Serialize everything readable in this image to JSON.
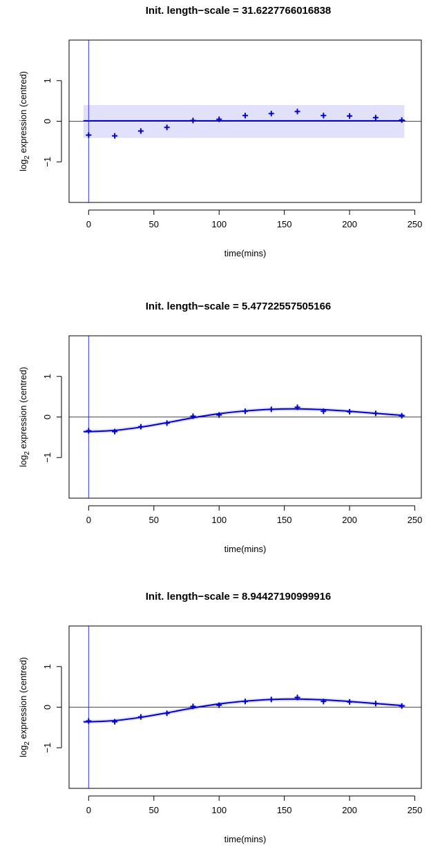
{
  "chart_data": [
    {
      "type": "line",
      "title": "Init. length−scale = 31.6227766016838",
      "xlabel": "time(mins)",
      "ylabel_base": "log",
      "ylabel_sub": "2",
      "ylabel_rest": " expression (centred)",
      "xlim": [
        -15,
        255
      ],
      "ylim": [
        -2,
        2
      ],
      "xticks": [
        0,
        50,
        100,
        150,
        200,
        250
      ],
      "xtick_labels": [
        "0",
        "50",
        "100",
        "150",
        "200",
        "250"
      ],
      "yticks": [
        -1,
        0,
        1
      ],
      "ytick_labels": [
        "−1",
        "0",
        "1"
      ],
      "observations": {
        "x": [
          0,
          20,
          40,
          60,
          80,
          100,
          120,
          140,
          160,
          180,
          200,
          220,
          240
        ],
        "y": [
          -0.34,
          -0.36,
          -0.24,
          -0.15,
          0.02,
          0.05,
          0.14,
          0.19,
          0.24,
          0.14,
          0.13,
          0.09,
          0.03
        ]
      },
      "fit": {
        "x": [
          -4,
          0,
          20,
          40,
          60,
          80,
          100,
          120,
          140,
          160,
          180,
          200,
          220,
          240,
          242
        ],
        "y": [
          0.01,
          0.01,
          0.01,
          0.01,
          0.01,
          0.01,
          0.01,
          0.01,
          0.01,
          0.01,
          0.01,
          0.01,
          0.01,
          0.01,
          0.01
        ],
        "band_lower": [
          -0.41,
          -0.41,
          -0.41,
          -0.41,
          -0.41,
          -0.41,
          -0.41,
          -0.41,
          -0.41,
          -0.41,
          -0.41,
          -0.41,
          -0.41,
          -0.41,
          -0.41
        ],
        "band_upper": [
          0.4,
          0.4,
          0.4,
          0.4,
          0.4,
          0.4,
          0.4,
          0.4,
          0.4,
          0.4,
          0.4,
          0.4,
          0.4,
          0.4,
          0.4
        ]
      },
      "vline_x": 0,
      "hline_y": 0
    },
    {
      "type": "line",
      "title": "Init. length−scale = 5.47722557505166",
      "xlabel": "time(mins)",
      "ylabel_base": "log",
      "ylabel_sub": "2",
      "ylabel_rest": " expression (centred)",
      "xlim": [
        -15,
        255
      ],
      "ylim": [
        -2,
        2
      ],
      "xticks": [
        0,
        50,
        100,
        150,
        200,
        250
      ],
      "xtick_labels": [
        "0",
        "50",
        "100",
        "150",
        "200",
        "250"
      ],
      "yticks": [
        -1,
        0,
        1
      ],
      "ytick_labels": [
        "−1",
        "0",
        "1"
      ],
      "observations": {
        "x": [
          0,
          20,
          40,
          60,
          80,
          100,
          120,
          140,
          160,
          180,
          200,
          220,
          240
        ],
        "y": [
          -0.34,
          -0.36,
          -0.24,
          -0.15,
          0.02,
          0.05,
          0.14,
          0.19,
          0.24,
          0.14,
          0.13,
          0.09,
          0.03
        ]
      },
      "fit": {
        "x": [
          -4,
          0,
          20,
          40,
          60,
          80,
          100,
          120,
          140,
          160,
          180,
          200,
          220,
          240,
          242
        ],
        "y": [
          -0.36,
          -0.36,
          -0.33,
          -0.25,
          -0.14,
          -0.02,
          0.08,
          0.15,
          0.19,
          0.2,
          0.18,
          0.14,
          0.09,
          0.04,
          0.03
        ],
        "band_lower": [
          -0.41,
          -0.41,
          -0.38,
          -0.3,
          -0.19,
          -0.07,
          0.03,
          0.1,
          0.14,
          0.15,
          0.13,
          0.09,
          0.04,
          -0.01,
          -0.02
        ],
        "band_upper": [
          -0.31,
          -0.31,
          -0.28,
          -0.2,
          -0.09,
          0.03,
          0.13,
          0.2,
          0.24,
          0.25,
          0.23,
          0.19,
          0.14,
          0.09,
          0.08
        ]
      },
      "vline_x": 0,
      "hline_y": 0
    },
    {
      "type": "line",
      "title": "Init. length−scale = 8.94427190999916",
      "xlabel": "time(mins)",
      "ylabel_base": "log",
      "ylabel_sub": "2",
      "ylabel_rest": " expression (centred)",
      "xlim": [
        -15,
        255
      ],
      "ylim": [
        -2,
        2
      ],
      "xticks": [
        0,
        50,
        100,
        150,
        200,
        250
      ],
      "xtick_labels": [
        "0",
        "50",
        "100",
        "150",
        "200",
        "250"
      ],
      "yticks": [
        -1,
        0,
        1
      ],
      "ytick_labels": [
        "−1",
        "0",
        "1"
      ],
      "observations": {
        "x": [
          0,
          20,
          40,
          60,
          80,
          100,
          120,
          140,
          160,
          180,
          200,
          220,
          240
        ],
        "y": [
          -0.34,
          -0.36,
          -0.24,
          -0.15,
          0.02,
          0.05,
          0.14,
          0.19,
          0.24,
          0.14,
          0.13,
          0.09,
          0.03
        ]
      },
      "fit": {
        "x": [
          -4,
          0,
          20,
          40,
          60,
          80,
          100,
          120,
          140,
          160,
          180,
          200,
          220,
          240,
          242
        ],
        "y": [
          -0.36,
          -0.36,
          -0.33,
          -0.25,
          -0.14,
          -0.02,
          0.08,
          0.15,
          0.19,
          0.2,
          0.18,
          0.14,
          0.09,
          0.04,
          0.03
        ],
        "band_lower": [
          -0.41,
          -0.41,
          -0.38,
          -0.3,
          -0.19,
          -0.07,
          0.03,
          0.1,
          0.14,
          0.15,
          0.13,
          0.09,
          0.04,
          -0.01,
          -0.02
        ],
        "band_upper": [
          -0.31,
          -0.31,
          -0.28,
          -0.2,
          -0.09,
          0.03,
          0.13,
          0.2,
          0.24,
          0.25,
          0.23,
          0.19,
          0.14,
          0.09,
          0.08
        ]
      },
      "vline_x": 0,
      "hline_y": 0
    }
  ],
  "colors": {
    "series": "#0000cc",
    "band": "#e1e1fb",
    "refline": "#3333ff",
    "axis": "#000000"
  }
}
